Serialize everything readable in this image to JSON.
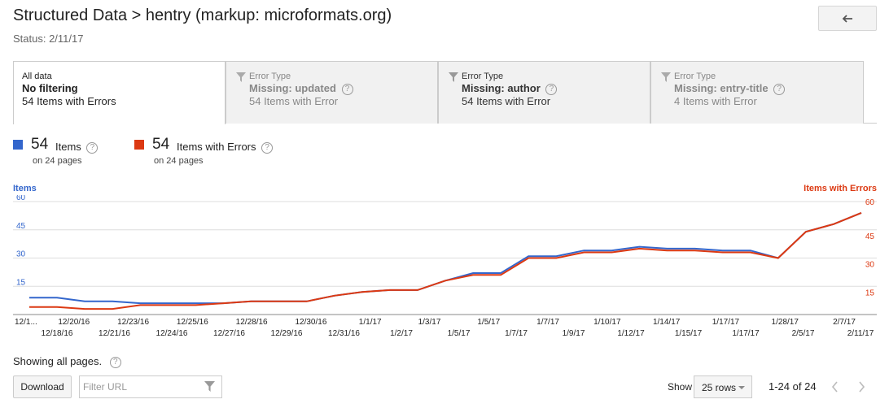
{
  "header": {
    "title": "Structured Data > hentry (markup: microformats.org)",
    "status": "Status: 2/11/17",
    "back_icon": "back-arrow-icon"
  },
  "tabs": [
    {
      "small": "All data",
      "big": "No filtering",
      "sub": "54 Items with Errors",
      "active": true
    },
    {
      "small": "Error Type",
      "big": "Missing: updated",
      "sub": "54 Items with Error",
      "icon": "filter-icon"
    },
    {
      "small": "Error Type",
      "big": "Missing: author",
      "sub": "54 Items with Error",
      "icon": "filter-icon"
    },
    {
      "small": "Error Type",
      "big": "Missing: entry-title",
      "sub": "4 Items with Error",
      "icon": "filter-icon"
    }
  ],
  "metrics": [
    {
      "value": "54",
      "label": "Items",
      "pages": "on 24 pages",
      "color": "#3366cc"
    },
    {
      "value": "54",
      "label": "Items with Errors",
      "pages": "on 24 pages",
      "color": "#dc3912"
    }
  ],
  "help_glyph": "?",
  "chart_data": {
    "type": "line",
    "left_axis_title": "Items",
    "right_axis_title": "Items with Errors",
    "ylim": [
      0,
      60
    ],
    "yticks": [
      15,
      30,
      45,
      60
    ],
    "x_top": [
      "12/1...",
      "12/20/16",
      "12/23/16",
      "12/25/16",
      "12/28/16",
      "12/30/16",
      "1/1/17",
      "1/3/17",
      "1/5/17",
      "1/7/17",
      "1/10/17",
      "1/14/17",
      "1/17/17",
      "1/28/17",
      "2/7/17"
    ],
    "x_bottom": [
      "12/18/16",
      "12/21/16",
      "12/24/16",
      "12/27/16",
      "12/29/16",
      "12/31/16",
      "1/2/17",
      "1/5/17",
      "1/7/17",
      "1/9/17",
      "1/12/17",
      "1/15/17",
      "1/17/17",
      "2/5/17",
      "2/11/17"
    ],
    "series": [
      {
        "name": "Items",
        "color": "#3366cc",
        "values": [
          9,
          9,
          7,
          7,
          6,
          6,
          6,
          6,
          7,
          7,
          7,
          10,
          12,
          13,
          13,
          18,
          22,
          22,
          31,
          31,
          34,
          34,
          36,
          35,
          35,
          34,
          34,
          30,
          44,
          48,
          54
        ]
      },
      {
        "name": "Items with Errors",
        "color": "#dc3912",
        "values": [
          4,
          4,
          3,
          3,
          5,
          5,
          5,
          6,
          7,
          7,
          7,
          10,
          12,
          13,
          13,
          18,
          21,
          21,
          30,
          30,
          33,
          33,
          35,
          34,
          34,
          33,
          33,
          30,
          44,
          48,
          54
        ]
      }
    ]
  },
  "footer": {
    "showing": "Showing all pages.",
    "download_label": "Download",
    "filter_placeholder": "Filter URL",
    "show_label": "Show",
    "rows_value": "25 rows",
    "range": "1-24 of 24"
  }
}
